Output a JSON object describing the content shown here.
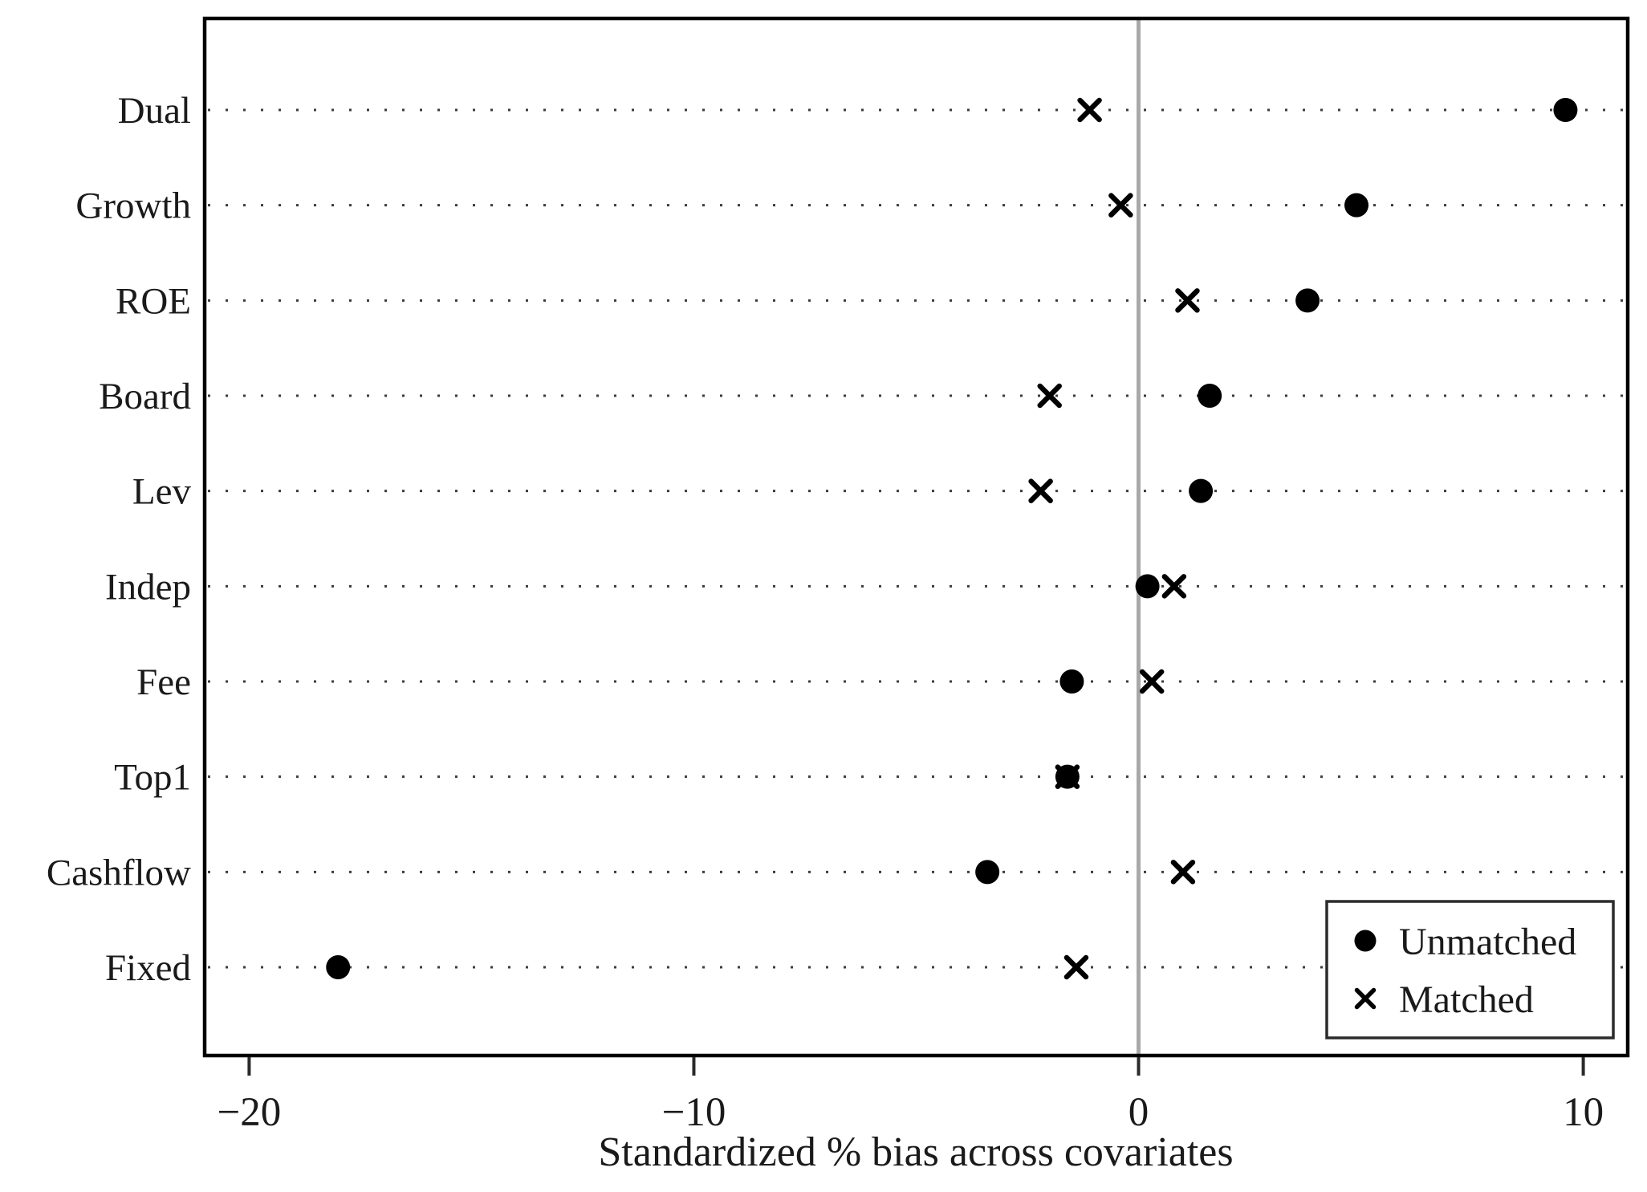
{
  "figure": {
    "kind": "covariate-balance-dot-plot",
    "background": "#ffffff"
  },
  "chart_data": {
    "type": "scatter",
    "orientation": "horizontal-dot-plot",
    "title": "",
    "xlabel": "Standardized % bias across covariates",
    "ylabel": "",
    "categories": [
      "Dual",
      "Growth",
      "ROE",
      "Board",
      "Lev",
      "Indep",
      "Fee",
      "Top1",
      "Cashflow",
      "Fixed"
    ],
    "series": [
      {
        "name": "Unmatched",
        "marker": "circle",
        "values": [
          9.6,
          4.9,
          3.8,
          1.6,
          1.4,
          0.2,
          -1.5,
          -1.6,
          -3.4,
          -18.0
        ]
      },
      {
        "name": "Matched",
        "marker": "x",
        "values": [
          -1.1,
          -0.4,
          1.1,
          -2.0,
          -2.2,
          0.8,
          0.3,
          -1.6,
          1.0,
          -1.4
        ]
      }
    ],
    "xlim": [
      -21,
      11
    ],
    "xticks": [
      -20,
      -10,
      0,
      10
    ],
    "xtick_labels": [
      "−20",
      "−10",
      "0",
      "10"
    ],
    "grid": "dotted-horizontal-per-category",
    "zero_reference_line": true,
    "legend_position": "inside-bottom-right"
  },
  "legend": {
    "items": [
      {
        "label": "Unmatched",
        "marker": "circle"
      },
      {
        "label": "Matched",
        "marker": "x"
      }
    ]
  },
  "colors": {
    "marker": "#000000",
    "zero_line": "#a8a8a8",
    "grid_dots": "#3c3c3c",
    "frame": "#000000",
    "tick": "#2a2a2a",
    "text": "#1a1a1a",
    "legend_border": "#2b2b2b",
    "background": "#ffffff"
  }
}
